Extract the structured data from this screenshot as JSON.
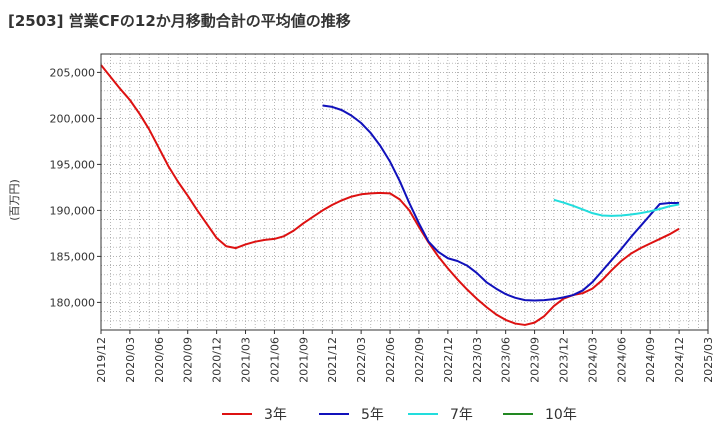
{
  "title": "[2503]  営業CFの12か月移動合計の平均値の推移",
  "chart_data": {
    "type": "line",
    "title": "[2503]  営業CFの12か月移動合計の平均値の推移",
    "ylabel": "(百万円)",
    "xlabel": "",
    "ylim": [
      177000,
      207000
    ],
    "yticks": [
      180000,
      185000,
      190000,
      195000,
      200000,
      205000
    ],
    "ytick_labels": [
      "180,000",
      "185,000",
      "190,000",
      "195,000",
      "200,000",
      "205,000"
    ],
    "xticks": [
      "2019/12",
      "2020/03",
      "2020/06",
      "2020/09",
      "2020/12",
      "2021/03",
      "2021/06",
      "2021/09",
      "2021/12",
      "2022/03",
      "2022/06",
      "2022/09",
      "2022/12",
      "2023/03",
      "2023/06",
      "2023/09",
      "2023/12",
      "2024/03",
      "2024/06",
      "2024/09",
      "2024/12",
      "2025/03"
    ],
    "grid": true,
    "legend_position": "bottom",
    "series": [
      {
        "name": "3年",
        "color": "#dd1111",
        "x": [
          "2019/12",
          "2020/01",
          "2020/02",
          "2020/03",
          "2020/04",
          "2020/05",
          "2020/06",
          "2020/07",
          "2020/08",
          "2020/09",
          "2020/10",
          "2020/11",
          "2020/12",
          "2021/01",
          "2021/02",
          "2021/03",
          "2021/04",
          "2021/05",
          "2021/06",
          "2021/07",
          "2021/08",
          "2021/09",
          "2021/10",
          "2021/11",
          "2021/12",
          "2022/01",
          "2022/02",
          "2022/03",
          "2022/04",
          "2022/05",
          "2022/06",
          "2022/07",
          "2022/08",
          "2022/09",
          "2022/10",
          "2022/11",
          "2022/12",
          "2023/01",
          "2023/02",
          "2023/03",
          "2023/04",
          "2023/05",
          "2023/06",
          "2023/07",
          "2023/08",
          "2023/09",
          "2023/10",
          "2023/11",
          "2023/12",
          "2024/01",
          "2024/02",
          "2024/03",
          "2024/04",
          "2024/05",
          "2024/06",
          "2024/07",
          "2024/08",
          "2024/09",
          "2024/10",
          "2024/11",
          "2024/12"
        ],
        "values": [
          205800,
          204500,
          203200,
          202000,
          200500,
          198800,
          196800,
          194800,
          193100,
          191600,
          190000,
          188500,
          187000,
          186100,
          185900,
          186300,
          186600,
          186800,
          186900,
          187200,
          187800,
          188600,
          189300,
          190000,
          190600,
          191100,
          191500,
          191750,
          191850,
          191900,
          191850,
          191200,
          190000,
          188200,
          186500,
          185000,
          183700,
          182500,
          181400,
          180400,
          179500,
          178700,
          178100,
          177700,
          177550,
          177800,
          178500,
          179600,
          180400,
          180800,
          181000,
          181500,
          182400,
          183500,
          184500,
          185300,
          185900,
          186400,
          186900,
          187400,
          188000
        ]
      },
      {
        "name": "5年",
        "color": "#1111bb",
        "x": [
          "2021/11",
          "2021/12",
          "2022/01",
          "2022/02",
          "2022/03",
          "2022/04",
          "2022/05",
          "2022/06",
          "2022/07",
          "2022/08",
          "2022/09",
          "2022/10",
          "2022/11",
          "2022/12",
          "2023/01",
          "2023/02",
          "2023/03",
          "2023/04",
          "2023/05",
          "2023/06",
          "2023/07",
          "2023/08",
          "2023/09",
          "2023/10",
          "2023/11",
          "2023/12",
          "2024/01",
          "2024/02",
          "2024/03",
          "2024/04",
          "2024/05",
          "2024/06",
          "2024/07",
          "2024/08",
          "2024/09",
          "2024/10",
          "2024/11",
          "2024/12"
        ],
        "values": [
          201400,
          201250,
          200900,
          200300,
          199500,
          198400,
          197000,
          195300,
          193200,
          190800,
          188600,
          186600,
          185500,
          184800,
          184500,
          184000,
          183200,
          182200,
          181500,
          180900,
          180500,
          180250,
          180200,
          180250,
          180350,
          180550,
          180800,
          181300,
          182200,
          183400,
          184600,
          185800,
          187100,
          188300,
          189500,
          190700,
          190800,
          190800
        ]
      },
      {
        "name": "7年",
        "color": "#22dddd",
        "x": [
          "2023/11",
          "2023/12",
          "2024/01",
          "2024/02",
          "2024/03",
          "2024/04",
          "2024/05",
          "2024/06",
          "2024/07",
          "2024/08",
          "2024/09",
          "2024/10",
          "2024/11",
          "2024/12"
        ],
        "values": [
          191150,
          190850,
          190500,
          190100,
          189700,
          189450,
          189400,
          189450,
          189550,
          189700,
          189900,
          190150,
          190450,
          190650
        ]
      },
      {
        "name": "10年",
        "color": "#228822",
        "x": [],
        "values": []
      }
    ]
  }
}
